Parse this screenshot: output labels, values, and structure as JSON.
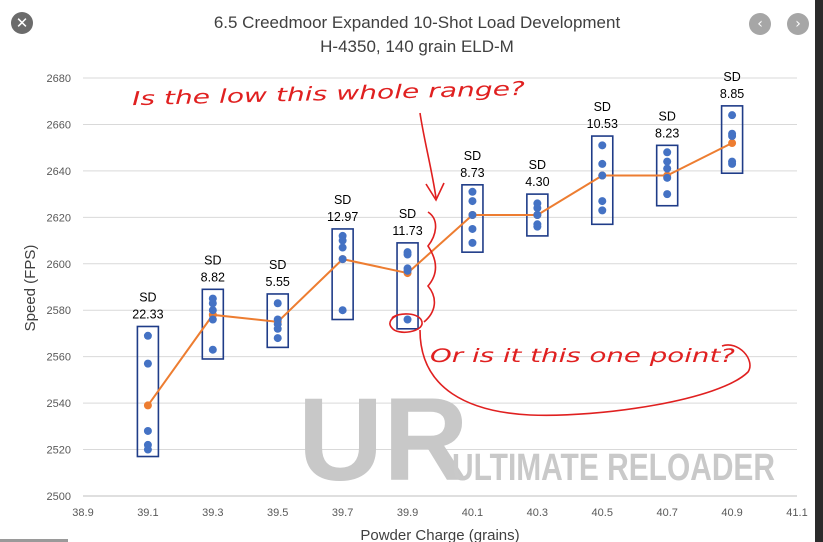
{
  "viewer": {
    "close_icon": "close-icon",
    "prev_icon": "chevron-left-icon",
    "next_icon": "chevron-right-icon",
    "close_glyph": "✕",
    "prev_glyph": "‹",
    "next_glyph": "›"
  },
  "chart_data": {
    "type": "line",
    "title": "6.5 Creedmoor Expanded 10-Shot Load Development",
    "subtitle": "H-4350, 140 grain ELD-M",
    "xlabel": "Powder Charge (grains)",
    "ylabel": "Speed (FPS)",
    "xlim": [
      38.9,
      41.1
    ],
    "ylim": [
      2500,
      2680
    ],
    "x_ticks": [
      "38.9",
      "39.1",
      "39.3",
      "39.5",
      "39.7",
      "39.9",
      "40.1",
      "40.3",
      "40.5",
      "40.7",
      "40.9",
      "41.1"
    ],
    "y_ticks": [
      "2500",
      "2520",
      "2540",
      "2560",
      "2580",
      "2600",
      "2620",
      "2640",
      "2660",
      "2680"
    ],
    "grid": "horizontal",
    "series": [
      {
        "name": "",
        "kind": "average-line",
        "color": "#ed7d31",
        "x": [
          39.1,
          39.3,
          39.5,
          39.7,
          39.9,
          40.1,
          40.3,
          40.5,
          40.7,
          40.9
        ],
        "y": [
          2539,
          2578,
          2575,
          2602,
          2596,
          2621,
          2621,
          2638,
          2638,
          2652
        ]
      },
      {
        "name": "",
        "kind": "shots",
        "color": "#4472c4",
        "groups": [
          {
            "x": 39.1,
            "y": [
              2569,
              2557,
              2528,
              2522,
              2520
            ]
          },
          {
            "x": 39.3,
            "y": [
              2585,
              2583,
              2580,
              2576,
              2563
            ]
          },
          {
            "x": 39.5,
            "y": [
              2583,
              2576,
              2574,
              2572,
              2568
            ]
          },
          {
            "x": 39.7,
            "y": [
              2612,
              2610,
              2607,
              2602,
              2580
            ]
          },
          {
            "x": 39.9,
            "y": [
              2605,
              2604,
              2598,
              2597,
              2576
            ]
          },
          {
            "x": 40.1,
            "y": [
              2631,
              2627,
              2621,
              2615,
              2609
            ]
          },
          {
            "x": 40.3,
            "y": [
              2626,
              2624,
              2621,
              2617,
              2616
            ]
          },
          {
            "x": 40.5,
            "y": [
              2651,
              2643,
              2638,
              2627,
              2623
            ]
          },
          {
            "x": 40.7,
            "y": [
              2648,
              2644,
              2641,
              2637,
              2630
            ]
          },
          {
            "x": 40.9,
            "y": [
              2664,
              2656,
              2655,
              2644,
              2643
            ]
          }
        ]
      }
    ],
    "range_boxes": [
      {
        "x": 39.1,
        "low": 2517,
        "high": 2573
      },
      {
        "x": 39.3,
        "low": 2559,
        "high": 2589
      },
      {
        "x": 39.5,
        "low": 2564,
        "high": 2587
      },
      {
        "x": 39.7,
        "low": 2576,
        "high": 2615
      },
      {
        "x": 39.9,
        "low": 2572,
        "high": 2609
      },
      {
        "x": 40.1,
        "low": 2605,
        "high": 2634
      },
      {
        "x": 40.3,
        "low": 2612,
        "high": 2630
      },
      {
        "x": 40.5,
        "low": 2617,
        "high": 2655
      },
      {
        "x": 40.7,
        "low": 2625,
        "high": 2651
      },
      {
        "x": 40.9,
        "low": 2639,
        "high": 2668
      }
    ],
    "sd_labels": [
      {
        "x": 39.1,
        "head": "SD",
        "value": "22.33"
      },
      {
        "x": 39.3,
        "head": "SD",
        "value": "8.82"
      },
      {
        "x": 39.5,
        "head": "SD",
        "value": "5.55"
      },
      {
        "x": 39.7,
        "head": "SD",
        "value": "12.97"
      },
      {
        "x": 39.9,
        "head": "SD",
        "value": "11.73"
      },
      {
        "x": 40.1,
        "head": "SD",
        "value": "8.73"
      },
      {
        "x": 40.3,
        "head": "SD",
        "value": "4.30"
      },
      {
        "x": 40.5,
        "head": "SD",
        "value": "10.53"
      },
      {
        "x": 40.7,
        "head": "SD",
        "value": "8.23"
      },
      {
        "x": 40.9,
        "head": "SD",
        "value": "8.85"
      }
    ],
    "box_color": "#1f3c88",
    "grid_color": "#d9d9d9"
  },
  "annotations": {
    "top_note": "Is the low this whole range?",
    "bottom_note": "Or is it this one point?",
    "color": "#e02020"
  },
  "watermark": {
    "letters": "UR",
    "brand": "ULTIMATE RELOADER",
    "letter_colors": [
      "#c8c8c8",
      "#f0a8a8"
    ],
    "brand_color": "#c9c9c9"
  }
}
